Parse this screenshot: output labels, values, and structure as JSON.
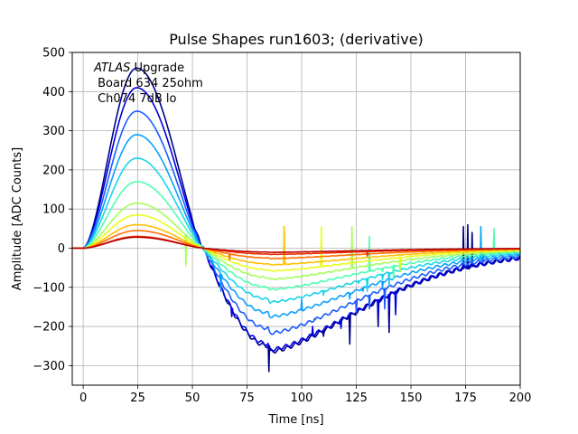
{
  "chart_data": {
    "type": "line",
    "title": "Pulse Shapes run1603; (derivative)",
    "xlabel": "Time [ns]",
    "ylabel": "Amplitude [ADC Counts]",
    "xlim": [
      -5,
      200
    ],
    "ylim": [
      -350,
      500
    ],
    "xticks": [
      0,
      25,
      50,
      75,
      100,
      125,
      150,
      175,
      200
    ],
    "yticks": [
      -300,
      -200,
      -100,
      0,
      100,
      200,
      300,
      400,
      500
    ],
    "grid": true,
    "annotation": {
      "line1_italic": "ATLAS",
      "line1_rest": " Upgrade",
      "line2": "Board 634 25ohm",
      "line3": "Ch074 7dB lo"
    },
    "series": [
      {
        "color": "#00008b",
        "peak": 460,
        "min": -250,
        "spikes": [
          [
            85,
            -315
          ],
          [
            110,
            -225
          ],
          [
            122,
            -245
          ],
          [
            135,
            -200
          ],
          [
            140,
            -215
          ],
          [
            174,
            55
          ],
          [
            176,
            60
          ],
          [
            178,
            40
          ]
        ]
      },
      {
        "color": "#0000dd",
        "peak": 410,
        "min": -245,
        "spikes": [
          [
            68,
            -175
          ],
          [
            105,
            -200
          ],
          [
            118,
            -205
          ],
          [
            135,
            -175
          ],
          [
            140,
            -160
          ],
          [
            143,
            -170
          ]
        ]
      },
      {
        "color": "#1a5cff",
        "peak": 350,
        "min": -205,
        "spikes": [
          [
            106,
            -180
          ],
          [
            125,
            -165
          ],
          [
            131,
            -155
          ],
          [
            138,
            -155
          ],
          [
            183,
            -10
          ]
        ]
      },
      {
        "color": "#0aa0ff",
        "peak": 290,
        "min": -165,
        "spikes": [
          [
            63,
            -110
          ],
          [
            100,
            -130
          ],
          [
            122,
            -130
          ],
          [
            128,
            -110
          ],
          [
            137,
            -100
          ],
          [
            182,
            55
          ]
        ]
      },
      {
        "color": "#17d5e8",
        "peak": 230,
        "min": -130,
        "spikes": [
          [
            110,
            -120
          ],
          [
            126,
            -90
          ],
          [
            130,
            -110
          ],
          [
            137,
            -80
          ],
          [
            140,
            -95
          ]
        ]
      },
      {
        "color": "#4dffb0",
        "peak": 170,
        "min": -100,
        "spikes": [
          [
            131,
            30
          ],
          [
            137,
            -60
          ],
          [
            142,
            -80
          ],
          [
            188,
            50
          ]
        ]
      },
      {
        "color": "#a2ff5a",
        "peak": 115,
        "min": -75,
        "spikes": [
          [
            47,
            -45
          ],
          [
            123,
            55
          ],
          [
            145,
            -60
          ]
        ]
      },
      {
        "color": "#e8ff1a",
        "peak": 85,
        "min": -55,
        "spikes": [
          [
            109,
            55
          ],
          [
            145,
            -45
          ]
        ]
      },
      {
        "color": "#ffc000",
        "peak": 60,
        "min": -40,
        "spikes": [
          [
            92,
            55
          ]
        ]
      },
      {
        "color": "#ff7000",
        "peak": 45,
        "min": -25,
        "spikes": [
          [
            67,
            -30
          ],
          [
            160,
            -5
          ]
        ]
      },
      {
        "color": "#ee3000",
        "peak": 30,
        "min": -15,
        "spikes": [
          [
            130,
            -20
          ]
        ]
      },
      {
        "color": "#b80000",
        "peak": 28,
        "min": -10,
        "spikes": []
      }
    ]
  }
}
